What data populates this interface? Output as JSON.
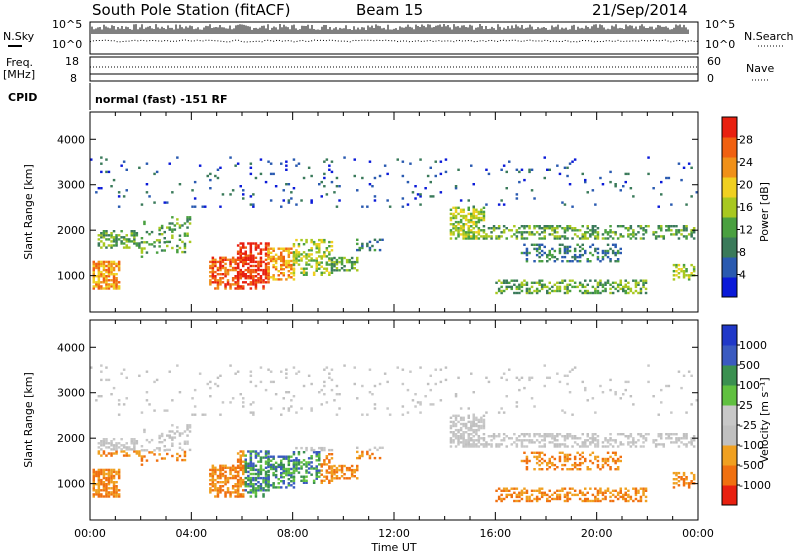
{
  "header": {
    "title": "South Pole Station (fitACF)",
    "beam": "Beam 15",
    "date": "21/Sep/2014"
  },
  "strip_panels": {
    "nsky_label": "N.Sky",
    "nsearch_label": "N.Search",
    "noise_ticks": [
      "10^5",
      "10^0"
    ],
    "freq_label": "Freq.",
    "freq_unit": "[MHz]",
    "freq_ticks": [
      "18",
      "8"
    ],
    "nave_label": "Nave",
    "nave_ticks": [
      "60",
      "0"
    ],
    "cpid_label": "CPID",
    "cpid_text": "normal (fast) -151 RF"
  },
  "colors": {
    "power_scale": [
      "#0a1ad8",
      "#2a5ab0",
      "#3a7a5a",
      "#4aa040",
      "#a8c820",
      "#f0d020",
      "#f09018",
      "#f06010",
      "#e82010"
    ],
    "velocity_scale": [
      "#2038c8",
      "#3a5ac0",
      "#3a9050",
      "#60c040",
      "#c8c8c8",
      "#c0c0c0",
      "#f0a020",
      "#f07010",
      "#e82010"
    ]
  },
  "chart_data": [
    {
      "type": "heatmap",
      "panel": "power",
      "xlabel": "",
      "ylabel": "Slant Range [km]",
      "xlim": [
        "00:00",
        "00:00"
      ],
      "xticks": [
        "00:00",
        "04:00",
        "08:00",
        "12:00",
        "16:00",
        "20:00",
        "00:00"
      ],
      "ylim": [
        200,
        4600
      ],
      "yticks": [
        1000,
        2000,
        3000,
        4000
      ],
      "colorbar": {
        "label": "Power [dB]",
        "ticks": [
          4,
          8,
          12,
          16,
          20,
          24,
          28
        ]
      }
    },
    {
      "type": "heatmap",
      "panel": "velocity",
      "xlabel": "Time UT",
      "ylabel": "Slant Range [km]",
      "xlim": [
        "00:00",
        "00:00"
      ],
      "xticks": [
        "00:00",
        "04:00",
        "08:00",
        "12:00",
        "16:00",
        "20:00",
        "00:00"
      ],
      "ylim": [
        200,
        4600
      ],
      "yticks": [
        1000,
        2000,
        3000,
        4000
      ],
      "colorbar": {
        "label": "Velocity [m s⁻¹]",
        "ticks": [
          1000,
          500,
          100,
          25,
          -25,
          -100,
          -500,
          -1000
        ]
      }
    }
  ]
}
